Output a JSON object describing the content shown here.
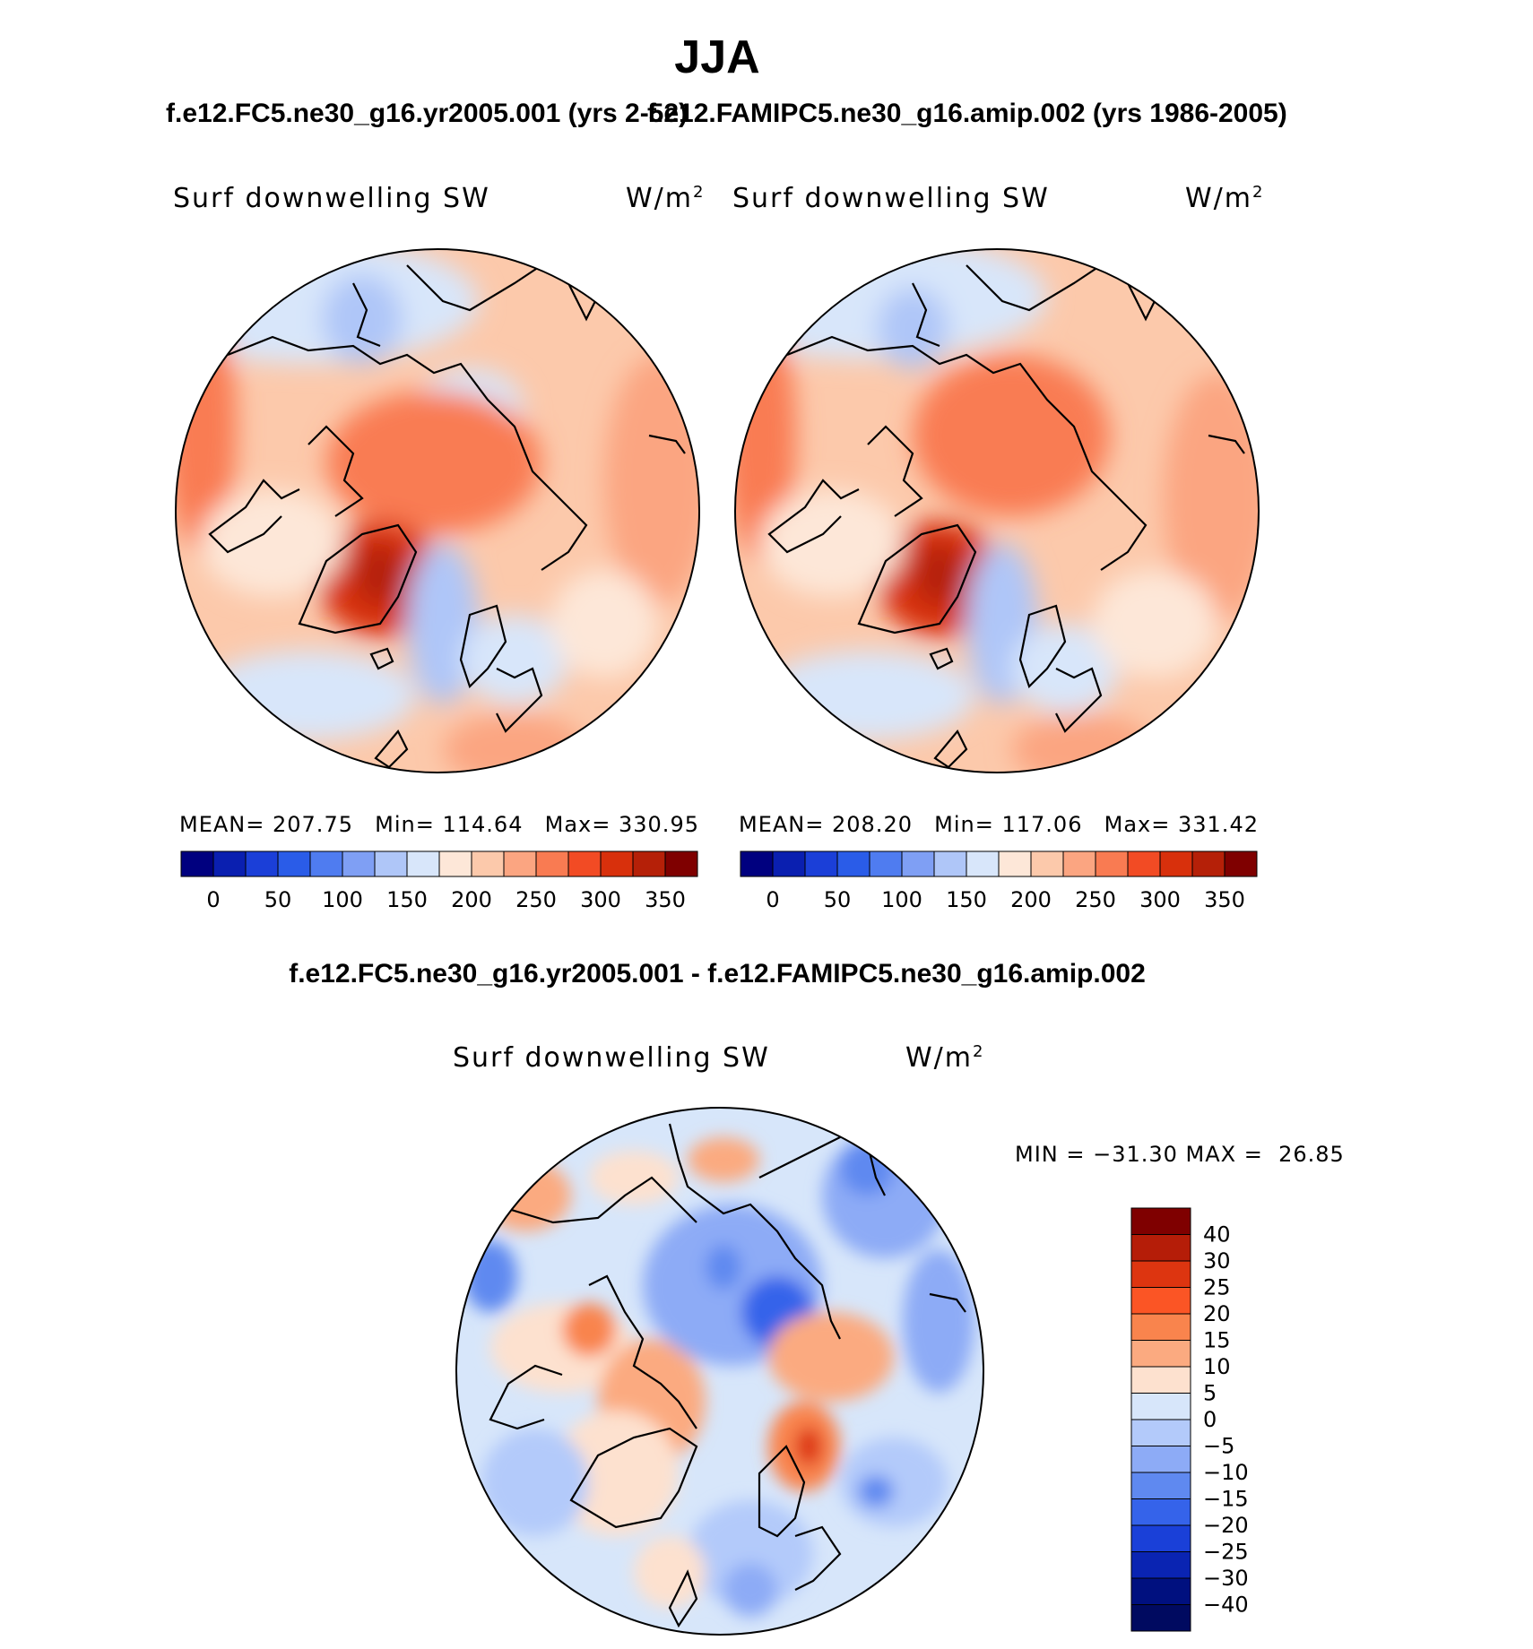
{
  "page_title": "JJA",
  "chart_data": [
    {
      "type": "heatmap",
      "map_projection": "north polar stereographic",
      "title": "f.e12.FC5.ne30_g16.yr2005.001 (yrs 2-52)",
      "variable": "Surf downwelling SW",
      "units": "W/m",
      "units_exp": "2",
      "stats": {
        "mean_label": "MEAN=",
        "mean": "207.75",
        "min_label": "Min=",
        "min": "114.64",
        "max_label": "Max=",
        "max": "330.95"
      },
      "colorbar": {
        "orientation": "horizontal",
        "tick_labels": [
          "0",
          "50",
          "100",
          "150",
          "200",
          "250",
          "300",
          "350"
        ],
        "colors": [
          "#00007f",
          "#0a1fb0",
          "#1b3fd8",
          "#2a5ce8",
          "#4f7cf0",
          "#7f9ff4",
          "#afc6f8",
          "#d8e6fa",
          "#fde7d8",
          "#fcc9ab",
          "#fba581",
          "#f97b52",
          "#f24b24",
          "#d8300c",
          "#b52008",
          "#7f0000"
        ]
      }
    },
    {
      "type": "heatmap",
      "map_projection": "north polar stereographic",
      "title": "f.e12.FAMIPC5.ne30_g16.amip.002 (yrs 1986-2005)",
      "variable": "Surf downwelling SW",
      "units": "W/m",
      "units_exp": "2",
      "stats": {
        "mean_label": "MEAN=",
        "mean": "208.20",
        "min_label": "Min=",
        "min": "117.06",
        "max_label": "Max=",
        "max": "331.42"
      },
      "colorbar": {
        "orientation": "horizontal",
        "tick_labels": [
          "0",
          "50",
          "100",
          "150",
          "200",
          "250",
          "300",
          "350"
        ],
        "colors": [
          "#00007f",
          "#0a1fb0",
          "#1b3fd8",
          "#2a5ce8",
          "#4f7cf0",
          "#7f9ff4",
          "#afc6f8",
          "#d8e6fa",
          "#fde7d8",
          "#fcc9ab",
          "#fba581",
          "#f97b52",
          "#f24b24",
          "#d8300c",
          "#b52008",
          "#7f0000"
        ]
      }
    },
    {
      "type": "heatmap",
      "map_projection": "north polar stereographic",
      "title": "f.e12.FC5.ne30_g16.yr2005.001 - f.e12.FAMIPC5.ne30_g16.amip.002",
      "variable": "Surf downwelling SW",
      "units": "W/m",
      "units_exp": "2",
      "stats": {
        "text": "MIN = −31.30 MAX =  26.85"
      },
      "colorbar": {
        "orientation": "vertical",
        "tick_labels": [
          "40",
          "30",
          "25",
          "20",
          "15",
          "10",
          "5",
          "0",
          "−5",
          "−10",
          "−15",
          "−20",
          "−25",
          "−30",
          "−40"
        ],
        "colors": [
          "#7f0000",
          "#b51d08",
          "#dd3510",
          "#fb5525",
          "#f9844d",
          "#fbaa80",
          "#fde1cf",
          "#d7e6fa",
          "#b3cafa",
          "#8dabf6",
          "#5f89f0",
          "#3563ea",
          "#1a40d8",
          "#0a24b2",
          "#00107f",
          "#000a60"
        ]
      }
    }
  ]
}
